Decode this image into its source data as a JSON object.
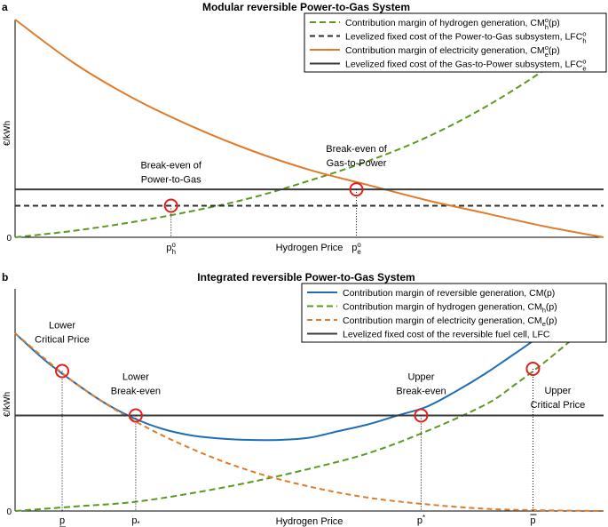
{
  "chart_data": [
    {
      "panel": "a",
      "type": "line",
      "title": "Modular reversible Power-to-Gas System",
      "xlabel": "Hydrogen Price",
      "ylabel": "€/kWh",
      "origin_label": "0",
      "xlim": [
        0,
        1
      ],
      "ylim": [
        0,
        1
      ],
      "grid": false,
      "legend_position": "top-right",
      "series": [
        {
          "name": "Contribution margin of hydrogen generation, CM",
          "name_sub": "h",
          "name_sup": "o",
          "name_suffix": "(p)",
          "color": "#5a9a1e",
          "dash": "long-dash",
          "x": [
            0,
            0.1,
            0.2,
            0.3,
            0.4,
            0.5,
            0.6,
            0.7,
            0.8,
            0.9,
            0.95
          ],
          "y": [
            0,
            0.03,
            0.07,
            0.12,
            0.18,
            0.26,
            0.35,
            0.46,
            0.6,
            0.77,
            0.88
          ]
        },
        {
          "name": "Levelized fixed cost of the Power-to-Gas subsystem, LFC",
          "name_sub": "h",
          "name_sup": "o",
          "name_suffix": "",
          "color": "#2d2d2d",
          "dash": "dash",
          "x": [
            0,
            1
          ],
          "y": [
            0.145,
            0.145
          ]
        },
        {
          "name": "Contribution margin of electricity generation, CM",
          "name_sub": "e",
          "name_sup": "o",
          "name_suffix": "(p)",
          "color": "#e07b2a",
          "dash": "solid",
          "x": [
            0,
            0.1,
            0.2,
            0.3,
            0.4,
            0.5,
            0.6,
            0.7,
            0.8,
            0.9,
            1.0
          ],
          "y": [
            1.0,
            0.8,
            0.64,
            0.51,
            0.4,
            0.31,
            0.24,
            0.17,
            0.11,
            0.05,
            0.0
          ]
        },
        {
          "name": "Levelized fixed cost of the Gas-to-Power subsystem, LFC",
          "name_sub": "e",
          "name_sup": "o",
          "name_suffix": "",
          "color": "#3a3a3a",
          "dash": "solid",
          "x": [
            0,
            1
          ],
          "y": [
            0.22,
            0.22
          ]
        }
      ],
      "annotations": [
        {
          "label": "Break-even of Power-to-Gas",
          "lines": [
            "Break-even of",
            "Power-to-Gas"
          ],
          "x": 0.265,
          "y": 0.145,
          "tick_label": "p",
          "tick_sub": "h",
          "tick_sup": "o"
        },
        {
          "label": "Break-even of Gas-to-Power",
          "lines": [
            "Break-even of",
            "Gas-to-Power"
          ],
          "x": 0.58,
          "y": 0.22,
          "tick_label": "p",
          "tick_sub": "e",
          "tick_sup": "o"
        }
      ]
    },
    {
      "panel": "b",
      "type": "line",
      "title": "Integrated reversible Power-to-Gas System",
      "xlabel": "Hydrogen Price",
      "ylabel": "€/kWh",
      "origin_label": "0",
      "xlim": [
        0,
        1
      ],
      "ylim": [
        0,
        1
      ],
      "grid": false,
      "legend_position": "top-right",
      "series": [
        {
          "name": "Contribution margin of reversible generation, CM(p)",
          "name_sub": "",
          "name_sup": "",
          "name_suffix": "",
          "color": "#1f6eb4",
          "dash": "solid",
          "x": [
            0,
            0.05,
            0.1,
            0.15,
            0.2,
            0.25,
            0.3,
            0.35,
            0.4,
            0.45,
            0.5,
            0.55,
            0.6,
            0.65,
            0.7,
            0.75,
            0.8,
            0.85,
            0.9,
            0.95
          ],
          "y": [
            0.8,
            0.68,
            0.58,
            0.49,
            0.42,
            0.37,
            0.34,
            0.326,
            0.32,
            0.32,
            0.33,
            0.36,
            0.39,
            0.43,
            0.47,
            0.54,
            0.62,
            0.71,
            0.8,
            0.88
          ]
        },
        {
          "name": "Contribution margin of hydrogen generation, CM",
          "name_sub": "h",
          "name_sup": "",
          "name_suffix": "(p)",
          "color": "#5a9a1e",
          "dash": "long-dash",
          "x": [
            0,
            0.1,
            0.2,
            0.3,
            0.4,
            0.5,
            0.6,
            0.7,
            0.8,
            0.85,
            0.9,
            0.95
          ],
          "y": [
            0,
            0.02,
            0.04,
            0.08,
            0.13,
            0.19,
            0.26,
            0.36,
            0.48,
            0.57,
            0.67,
            0.78
          ]
        },
        {
          "name": "Contribution margin of electricity generation, CM",
          "name_sub": "e",
          "name_sup": "",
          "name_suffix": "(p)",
          "color": "#e07b2a",
          "dash": "dash",
          "x": [
            0,
            0.1,
            0.2,
            0.3,
            0.4,
            0.5,
            0.6,
            0.7,
            0.8,
            0.9,
            1.0
          ],
          "y": [
            0.8,
            0.58,
            0.41,
            0.28,
            0.18,
            0.11,
            0.06,
            0.03,
            0.01,
            0.003,
            0.0
          ]
        },
        {
          "name": "Levelized fixed cost of the reversible fuel cell, LFC",
          "name_sub": "",
          "name_sup": "",
          "name_suffix": "",
          "color": "#3a3a3a",
          "dash": "solid",
          "x": [
            0,
            1
          ],
          "y": [
            0.43,
            0.43
          ]
        }
      ],
      "annotations": [
        {
          "label": "Lower Critical Price",
          "lines": [
            "Lower",
            "Critical Price"
          ],
          "x": 0.08,
          "y": 0.63,
          "tick_label": "p",
          "tick_mark": "underline"
        },
        {
          "label": "Lower Break-even",
          "lines": [
            "Lower",
            "Break-even"
          ],
          "x": 0.205,
          "y": 0.43,
          "tick_label": "p",
          "tick_sub": "*"
        },
        {
          "label": "Upper Break-even",
          "lines": [
            "Upper",
            "Break-even"
          ],
          "x": 0.69,
          "y": 0.43,
          "tick_label": "p",
          "tick_sup": "*"
        },
        {
          "label": "Upper Critical Price",
          "lines": [
            "Upper",
            "Critical Price"
          ],
          "x": 0.88,
          "y": 0.64,
          "tick_label": "p",
          "tick_mark": "overline"
        }
      ]
    }
  ]
}
